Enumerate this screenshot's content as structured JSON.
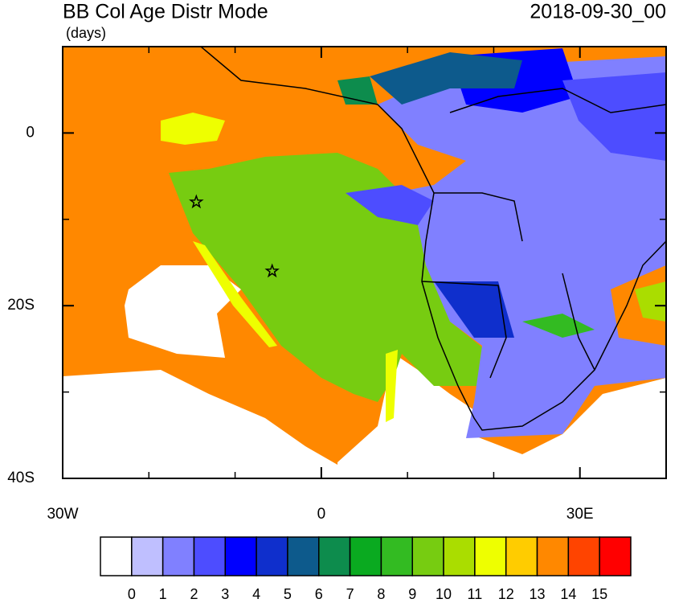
{
  "chart_data": {
    "type": "map",
    "title": "BB Col Age Distr Mode",
    "subtitle": "(days)",
    "date": "2018-09-30_00",
    "xlim": [
      -30,
      40
    ],
    "ylim": [
      -40,
      10
    ],
    "xticks": [
      {
        "value": -30,
        "label": "30W"
      },
      0,
      {
        "value": 30,
        "label": "30E"
      }
    ],
    "yticks": [
      0,
      {
        "value": -20,
        "label": "20S"
      },
      {
        "value": -40,
        "label": "40S"
      }
    ],
    "xminor_ticks": [
      -20,
      -10,
      10,
      20,
      40
    ],
    "yminor_ticks": [
      10,
      -10,
      -30
    ],
    "markers": [
      {
        "lon": -14.5,
        "lat": -8
      },
      {
        "lon": -5.7,
        "lat": -16
      }
    ],
    "levels": [
      0,
      1,
      2,
      3,
      4,
      5,
      6,
      7,
      8,
      9,
      10,
      11,
      12,
      13,
      14,
      15
    ],
    "colors": [
      "#ffffff",
      "#bfbfff",
      "#8080ff",
      "#4d4dff",
      "#0000ff",
      "#0f2fcc",
      "#0d5a8c",
      "#0d8c4d",
      "#0aaa20",
      "#33bb22",
      "#77cc11",
      "#aadd00",
      "#eeff00",
      "#ffcc00",
      "#ff8800",
      "#ff4400",
      "#ff0000"
    ]
  }
}
